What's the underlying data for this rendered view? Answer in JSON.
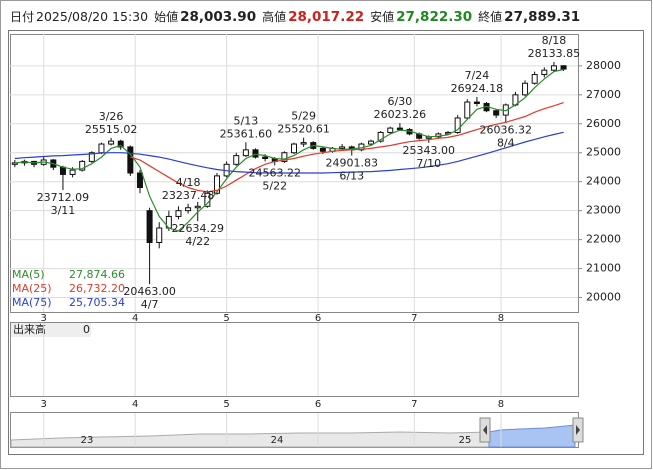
{
  "header": [
    {
      "label": "日付",
      "value": "2025/08/20 15:30"
    },
    {
      "label": "始値",
      "value": "28,003.90"
    },
    {
      "label": "高値",
      "value": "28,017.22"
    },
    {
      "label": "安値",
      "value": "27,822.30"
    },
    {
      "label": "終値",
      "value": "27,889.31"
    }
  ],
  "chart_data": {
    "type": "candlestick",
    "x": [
      0,
      2,
      4,
      6,
      8,
      10,
      12,
      14,
      16,
      18,
      20,
      22,
      24,
      26,
      28,
      30,
      32,
      34,
      36,
      38,
      40,
      42,
      44,
      46,
      48,
      50,
      52,
      54,
      56,
      58,
      60,
      62,
      64,
      66,
      68,
      70,
      72,
      74,
      76,
      78,
      80,
      82,
      84,
      86,
      88,
      90,
      92,
      94,
      96,
      98,
      100,
      102,
      104,
      106,
      108,
      110,
      112,
      114
    ],
    "open": [
      24600,
      24650,
      24700,
      24600,
      24750,
      24500,
      24250,
      24400,
      24700,
      25000,
      25300,
      25400,
      25200,
      24300,
      23000,
      21900,
      22400,
      22800,
      23000,
      23100,
      23150,
      23600,
      24200,
      24600,
      24900,
      25100,
      24850,
      24800,
      24700,
      25000,
      25300,
      25350,
      25150,
      25050,
      25150,
      25200,
      25100,
      25300,
      25400,
      25700,
      25850,
      25800,
      25650,
      25500,
      25550,
      25650,
      25700,
      26200,
      26750,
      26700,
      26450,
      26300,
      26650,
      27000,
      27400,
      27700,
      27850,
      28003.9
    ],
    "high": [
      24750,
      24760,
      24720,
      24850,
      24780,
      24550,
      24500,
      24750,
      25050,
      25350,
      25515.02,
      25450,
      25250,
      24400,
      23100,
      22600,
      23000,
      23150,
      23237.48,
      23300,
      23700,
      24300,
      24700,
      25000,
      25361.6,
      25150,
      24950,
      24850,
      25050,
      25350,
      25520.61,
      25400,
      25200,
      25200,
      25300,
      25250,
      25350,
      25450,
      25750,
      25900,
      26023.26,
      25850,
      25700,
      25600,
      25700,
      25750,
      26300,
      26850,
      26924.18,
      26750,
      26500,
      26700,
      27100,
      27500,
      27800,
      27950,
      28133.85,
      28017.22
    ],
    "low": [
      24500,
      24550,
      24500,
      24550,
      24400,
      23712.09,
      24150,
      24350,
      24650,
      24950,
      25250,
      25100,
      24200,
      23600,
      20463,
      21700,
      22300,
      22700,
      22900,
      22634.29,
      23100,
      23550,
      24150,
      24550,
      24850,
      24800,
      24700,
      24563.22,
      24650,
      24950,
      25200,
      25100,
      24950,
      25000,
      25100,
      24901.83,
      25050,
      25250,
      25350,
      25650,
      25750,
      25600,
      25450,
      25343,
      25500,
      25600,
      25650,
      26150,
      26600,
      26400,
      26200,
      26036.32,
      26600,
      26950,
      27350,
      27600,
      27800,
      27822.3
    ],
    "close": [
      24650,
      24700,
      24600,
      24750,
      24500,
      24250,
      24400,
      24700,
      25000,
      25300,
      25400,
      25200,
      24300,
      23800,
      21900,
      22400,
      22800,
      23000,
      23100,
      23150,
      23600,
      24200,
      24600,
      24900,
      25100,
      24850,
      24800,
      24700,
      25000,
      25300,
      25350,
      25150,
      25050,
      25150,
      25200,
      25100,
      25300,
      25400,
      25700,
      25850,
      25800,
      25650,
      25500,
      25550,
      25650,
      25700,
      26200,
      26750,
      26700,
      26450,
      26300,
      26650,
      27000,
      27400,
      27700,
      27850,
      28000,
      27889.31
    ],
    "series": [
      {
        "name": "MA(5)",
        "color": "#2e8b2e",
        "current": {
          "value": 27874.66,
          "label": "27,874.66"
        },
        "values": [
          24650,
          24680,
          24650,
          24680,
          24620,
          24500,
          24430,
          24450,
          24620,
          24850,
          25150,
          25250,
          24950,
          24500,
          23500,
          22800,
          22400,
          22300,
          22600,
          22950,
          23250,
          23650,
          24100,
          24500,
          24800,
          24950,
          24900,
          24800,
          24780,
          24900,
          25100,
          25250,
          25200,
          25150,
          25120,
          25130,
          25170,
          25250,
          25450,
          25650,
          25780,
          25750,
          25650,
          25550,
          25570,
          25620,
          25800,
          26150,
          26500,
          26600,
          26500,
          26450,
          26650,
          26900,
          27250,
          27550,
          27800,
          27874.66
        ]
      },
      {
        "name": "MA(25)",
        "color": "#e03a2a",
        "current": {
          "value": 26732.2,
          "label": "26,732.20"
        },
        "values": [
          null,
          null,
          null,
          null,
          null,
          null,
          null,
          null,
          null,
          null,
          null,
          null,
          24850,
          24750,
          24550,
          24350,
          24150,
          23950,
          23800,
          23700,
          23650,
          23700,
          23850,
          24050,
          24250,
          24450,
          24600,
          24700,
          24750,
          24800,
          24880,
          24950,
          25000,
          25050,
          25080,
          25100,
          25120,
          25150,
          25200,
          25250,
          25320,
          25380,
          25420,
          25450,
          25500,
          25530,
          25600,
          25700,
          25800,
          25900,
          25980,
          26050,
          26150,
          26250,
          26400,
          26520,
          26620,
          26732.2
        ]
      },
      {
        "name": "MA(75)",
        "color": "#2a3fd0",
        "current": {
          "value": 25705.34,
          "label": "25,705.34"
        },
        "values": [
          24800,
          24830,
          24850,
          24870,
          24890,
          24900,
          24920,
          24940,
          24960,
          24990,
          25000,
          25000,
          24980,
          24950,
          24900,
          24850,
          24780,
          24700,
          24620,
          24550,
          24480,
          24420,
          24380,
          24350,
          24330,
          24310,
          24300,
          24300,
          24300,
          24300,
          24300,
          24300,
          24300,
          24310,
          24320,
          24330,
          24340,
          24350,
          24370,
          24390,
          24420,
          24450,
          24480,
          24520,
          24570,
          24620,
          24700,
          24790,
          24880,
          24970,
          25070,
          25170,
          25270,
          25370,
          25460,
          25550,
          25630,
          25705.34
        ]
      }
    ],
    "annotations": [
      {
        "date": "3/11",
        "value": 23712.09,
        "x": 10
      },
      {
        "date": "3/26",
        "value": 25515.02,
        "x": 20
      },
      {
        "date": "4/7",
        "value": 20463.0,
        "label": "20463.00",
        "x": 28
      },
      {
        "date": "4/18",
        "value": 23237.48,
        "x": 36
      },
      {
        "date": "4/22",
        "value": 22634.29,
        "x": 38
      },
      {
        "date": "5/13",
        "value": 25361.6,
        "label": "25361.60",
        "x": 48
      },
      {
        "date": "5/22",
        "value": 24563.22,
        "x": 54
      },
      {
        "date": "5/29",
        "value": 25520.61,
        "x": 60
      },
      {
        "date": "6/13",
        "value": 24901.83,
        "x": 70
      },
      {
        "date": "6/30",
        "value": 26023.26,
        "x": 80
      },
      {
        "date": "7/10",
        "value": 25343.0,
        "label": "25343.00",
        "x": 86
      },
      {
        "date": "7/24",
        "value": 26924.18,
        "x": 96
      },
      {
        "date": "8/4",
        "value": 26036.32,
        "x": 102
      },
      {
        "date": "8/18",
        "value": 28133.85,
        "x": 112
      }
    ],
    "xlim": [
      -1,
      117
    ],
    "xticks": [
      {
        "value": 6,
        "label": "3"
      },
      {
        "value": 25,
        "label": "4"
      },
      {
        "value": 44,
        "label": "5"
      },
      {
        "value": 63,
        "label": "6"
      },
      {
        "value": 83,
        "label": "7"
      },
      {
        "value": 101,
        "label": "8"
      }
    ],
    "ylim": [
      19500,
      29100
    ],
    "yticks": [
      20000,
      21000,
      22000,
      23000,
      24000,
      25000,
      26000,
      27000,
      28000
    ],
    "grid": true,
    "volume_label": "出来高",
    "volume_value": 0,
    "navigator_labels": [
      "23",
      "24",
      "25"
    ]
  }
}
